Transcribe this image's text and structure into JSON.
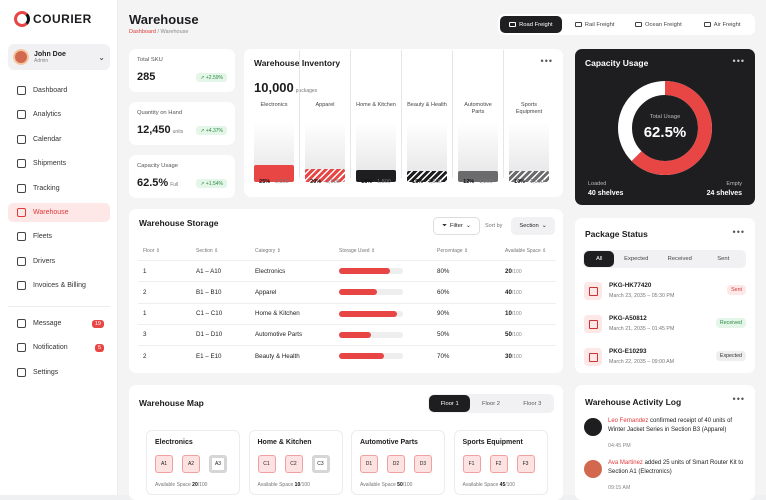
{
  "brand": {
    "name": "COURIER"
  },
  "user": {
    "name": "John Doe",
    "role": "Admin"
  },
  "nav": [
    {
      "label": "Dashboard",
      "icon": "grid-icon"
    },
    {
      "label": "Analytics",
      "icon": "chart-icon"
    },
    {
      "label": "Calendar",
      "icon": "calendar-icon"
    },
    {
      "label": "Shipments",
      "icon": "truck-icon"
    },
    {
      "label": "Tracking",
      "icon": "route-icon"
    },
    {
      "label": "Warehouse",
      "icon": "warehouse-icon"
    },
    {
      "label": "Fleets",
      "icon": "fleet-icon"
    },
    {
      "label": "Drivers",
      "icon": "driver-icon"
    },
    {
      "label": "Invoices & Billing",
      "icon": "invoice-icon"
    }
  ],
  "nav2": [
    {
      "label": "Message",
      "icon": "message-icon",
      "badge": "19"
    },
    {
      "label": "Notification",
      "icon": "bell-icon",
      "badge": "5"
    },
    {
      "label": "Settings",
      "icon": "gear-icon"
    }
  ],
  "page": {
    "title": "Warehouse",
    "crumb_root": "Dashboard",
    "crumb_sep": " / ",
    "crumb_current": "Warehouse"
  },
  "modes": [
    "Road Freight",
    "Rail Freight",
    "Ocean Freight",
    "Air Freight"
  ],
  "stats": [
    {
      "label": "Total SKU",
      "value": "285",
      "unit": "",
      "change": "+2.59%"
    },
    {
      "label": "Quantity on Hand",
      "value": "12,450",
      "unit": "units",
      "change": "+4.37%"
    },
    {
      "label": "Capacity Usage",
      "value": "62.5%",
      "unit": "Full",
      "change": "+1.54%"
    }
  ],
  "inventory": {
    "title": "Warehouse Inventory",
    "total": "10,000",
    "unit": "packages",
    "columns": [
      {
        "label": "Electronics",
        "pct": "25%",
        "count": "2,500",
        "fill": 0.25,
        "color": "#e84545",
        "hatch": false
      },
      {
        "label": "Apparel",
        "pct": "20%",
        "count": "2,000",
        "fill": 0.2,
        "color": "#e84545",
        "hatch": true
      },
      {
        "label": "Home & Kitchen",
        "pct": "18%",
        "count": "1,800",
        "fill": 0.18,
        "color": "#1e1e20",
        "hatch": false
      },
      {
        "label": "Beauty & Health",
        "pct": "15%",
        "count": "1,500",
        "fill": 0.15,
        "color": "#1e1e20",
        "hatch": true
      },
      {
        "label": "Automotive Parts",
        "pct": "12%",
        "count": "1,200",
        "fill": 0.12,
        "color": "#6b6b6e",
        "hatch": false
      },
      {
        "label": "Sports Equipment",
        "pct": "10%",
        "count": "1,000",
        "fill": 0.1,
        "color": "#6b6b6e",
        "hatch": true
      }
    ]
  },
  "capacity": {
    "title": "Capacity Usage",
    "center_label": "Total Usage",
    "center_value": "62.5%",
    "usage": 0.625,
    "loaded_label": "Loaded",
    "loaded_value": "40 shelves",
    "empty_label": "Empty",
    "empty_value": "24 shelves"
  },
  "storage": {
    "title": "Warehouse Storage",
    "filter": "Filter",
    "sortby": "Sort by",
    "sort": "Section",
    "headers": [
      "Floor",
      "Section",
      "Category",
      "Storage Used",
      "Percentage",
      "Available Space"
    ],
    "rows": [
      {
        "floor": "1",
        "section": "A1 – A10",
        "category": "Electronics",
        "used": 0.8,
        "pct": "80%",
        "avail": "20",
        "avail_total": "/100"
      },
      {
        "floor": "2",
        "section": "B1 – B10",
        "category": "Apparel",
        "used": 0.6,
        "pct": "60%",
        "avail": "40",
        "avail_total": "/100"
      },
      {
        "floor": "1",
        "section": "C1 – C10",
        "category": "Home & Kitchen",
        "used": 0.9,
        "pct": "90%",
        "avail": "10",
        "avail_total": "/100"
      },
      {
        "floor": "3",
        "section": "D1 – D10",
        "category": "Automotive Parts",
        "used": 0.5,
        "pct": "50%",
        "avail": "50",
        "avail_total": "/100"
      },
      {
        "floor": "2",
        "section": "E1 – E10",
        "category": "Beauty & Health",
        "used": 0.7,
        "pct": "70%",
        "avail": "30",
        "avail_total": "/100"
      }
    ]
  },
  "packages": {
    "title": "Package Status",
    "tabs": [
      "All",
      "Expected",
      "Received",
      "Sent"
    ],
    "items": [
      {
        "id": "PKG-HK77420",
        "date": "March 23, 2035 – 05:30 PM",
        "status": "Sent",
        "bg": "#fde7e7",
        "fg": "#d23c3c"
      },
      {
        "id": "PKG-A50812",
        "date": "March 21, 2035 – 01:45 PM",
        "status": "Received",
        "bg": "#e4f6e8",
        "fg": "#2d8a45"
      },
      {
        "id": "PKG-E10293",
        "date": "March 22, 2035 – 09:00 AM",
        "status": "Expected",
        "bg": "#eeeeef",
        "fg": "#333333"
      }
    ]
  },
  "map": {
    "title": "Warehouse Map",
    "floors": [
      "Floor 1",
      "Floor 2",
      "Floor 3"
    ],
    "avail_label": "Available Space",
    "zones": [
      {
        "name": "Electronics",
        "slots": [
          "A1",
          "A2",
          "A3"
        ],
        "avail": "20",
        "total": "/100"
      },
      {
        "name": "Home & Kitchen",
        "slots": [
          "C1",
          "C2",
          "C3"
        ],
        "avail": "10",
        "total": "/100"
      },
      {
        "name": "Automotive Parts",
        "slots": [
          "D1",
          "D2",
          "D3"
        ],
        "avail": "50",
        "total": "/100"
      },
      {
        "name": "Sports Equipment",
        "slots": [
          "F1",
          "F2",
          "F3"
        ],
        "avail": "45",
        "total": "/100"
      }
    ]
  },
  "activity": {
    "title": "Warehouse Activity Log",
    "items": [
      {
        "name": "Leo Fernandez",
        "text": " confirmed receipt of 40 units of Winter Jacket Series in Section B3 (Apparel)",
        "time": "04:45 PM"
      },
      {
        "name": "Ava Martinez",
        "text": " added 25 units of Smart Router Kit to Section A1 (Electronics)",
        "time": "09:15 AM"
      }
    ]
  }
}
